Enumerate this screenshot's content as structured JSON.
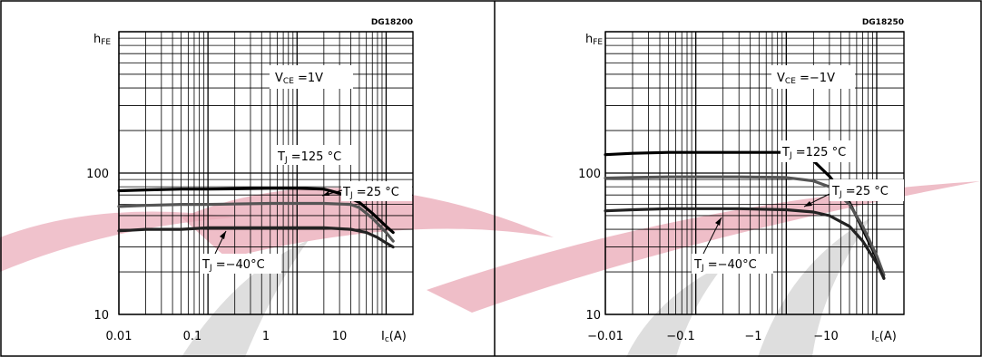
{
  "chart_data": [
    {
      "type": "line",
      "code": "DG18200",
      "ylabel": "h",
      "ylabel_sub": "FE",
      "xlabel": "I",
      "xlabel_sub": "c",
      "xlabel_unit": "(A)",
      "x_scale": "log",
      "y_scale": "log",
      "xlim": [
        0.01,
        20
      ],
      "ylim": [
        10,
        1000
      ],
      "x_ticks": [
        {
          "value": 0.01,
          "label": "0.01"
        },
        {
          "value": 0.1,
          "label": "0.1"
        },
        {
          "value": 1,
          "label": "1"
        },
        {
          "value": 10,
          "label": "10"
        }
      ],
      "y_ticks": [
        {
          "value": 10,
          "label": "10"
        },
        {
          "value": 100,
          "label": "100"
        }
      ],
      "grid": true,
      "condition": {
        "text": "V",
        "sub": "CE",
        "rest": " =1V"
      },
      "series": [
        {
          "x": [
            0.01,
            0.02,
            0.05,
            0.1,
            0.5,
            1,
            2,
            3,
            5,
            7,
            10,
            12
          ],
          "y": [
            75,
            76,
            77,
            77,
            78,
            78,
            77,
            72,
            62,
            52,
            42,
            38
          ]
        },
        {
          "x": [
            0.01,
            0.02,
            0.05,
            0.1,
            0.5,
            1,
            2,
            4,
            5,
            7,
            10,
            12
          ],
          "y": [
            58,
            59,
            60,
            60,
            61,
            61,
            61,
            60,
            57,
            48,
            38,
            33
          ]
        },
        {
          "x": [
            0.01,
            0.02,
            0.05,
            0.1,
            0.5,
            1,
            2,
            4,
            6,
            8,
            10,
            12
          ],
          "y": [
            39,
            40,
            40,
            41,
            41,
            41,
            41,
            40,
            38,
            35,
            32,
            30
          ]
        }
      ],
      "annotations": [
        {
          "text": "T",
          "sub": "J",
          "rest": " =125 °C",
          "series": 0
        },
        {
          "text": "T",
          "sub": "J",
          "rest": " =25 °C",
          "series": 1
        },
        {
          "text": "T",
          "sub": "J",
          "rest": " =−40°C",
          "series": 2
        }
      ]
    },
    {
      "type": "line",
      "code": "DG18250",
      "ylabel": "h",
      "ylabel_sub": "FE",
      "xlabel": "I",
      "xlabel_sub": "c",
      "xlabel_unit": "(A)",
      "x_scale": "log",
      "y_scale": "log",
      "xlim": [
        0.01,
        20
      ],
      "ylim": [
        10,
        1000
      ],
      "x_ticks": [
        {
          "value": 0.01,
          "label": "−0.01"
        },
        {
          "value": 0.1,
          "label": "−0.1"
        },
        {
          "value": 1,
          "label": "−1"
        },
        {
          "value": 10,
          "label": "−10"
        }
      ],
      "y_ticks": [
        {
          "value": 10,
          "label": "10"
        },
        {
          "value": 100,
          "label": "100"
        }
      ],
      "grid": true,
      "condition": {
        "text": "V",
        "sub": "CE",
        "rest": " =−1V"
      },
      "series": [
        {
          "x": [
            0.01,
            0.02,
            0.05,
            0.1,
            0.3,
            1,
            1.5,
            2,
            3,
            5,
            7,
            10,
            12
          ],
          "y": [
            135,
            138,
            140,
            140,
            140,
            140,
            136,
            122,
            95,
            62,
            40,
            25,
            18
          ]
        },
        {
          "x": [
            0.01,
            0.02,
            0.05,
            0.1,
            0.3,
            1,
            2,
            3,
            5,
            7,
            10,
            12
          ],
          "y": [
            92,
            93,
            94,
            94,
            94,
            93,
            88,
            80,
            60,
            42,
            26,
            19
          ]
        },
        {
          "x": [
            0.01,
            0.02,
            0.05,
            0.1,
            0.3,
            1,
            2,
            3,
            5,
            7,
            10,
            12
          ],
          "y": [
            54,
            55,
            56,
            56,
            56,
            55,
            53,
            50,
            42,
            33,
            23,
            18
          ]
        }
      ],
      "annotations": [
        {
          "text": "T",
          "sub": "J",
          "rest": " =125 °C",
          "series": 0
        },
        {
          "text": "T",
          "sub": "J",
          "rest": " =25 °C",
          "series": 1
        },
        {
          "text": "T",
          "sub": "J",
          "rest": " =−40°C",
          "series": 2
        }
      ]
    }
  ]
}
